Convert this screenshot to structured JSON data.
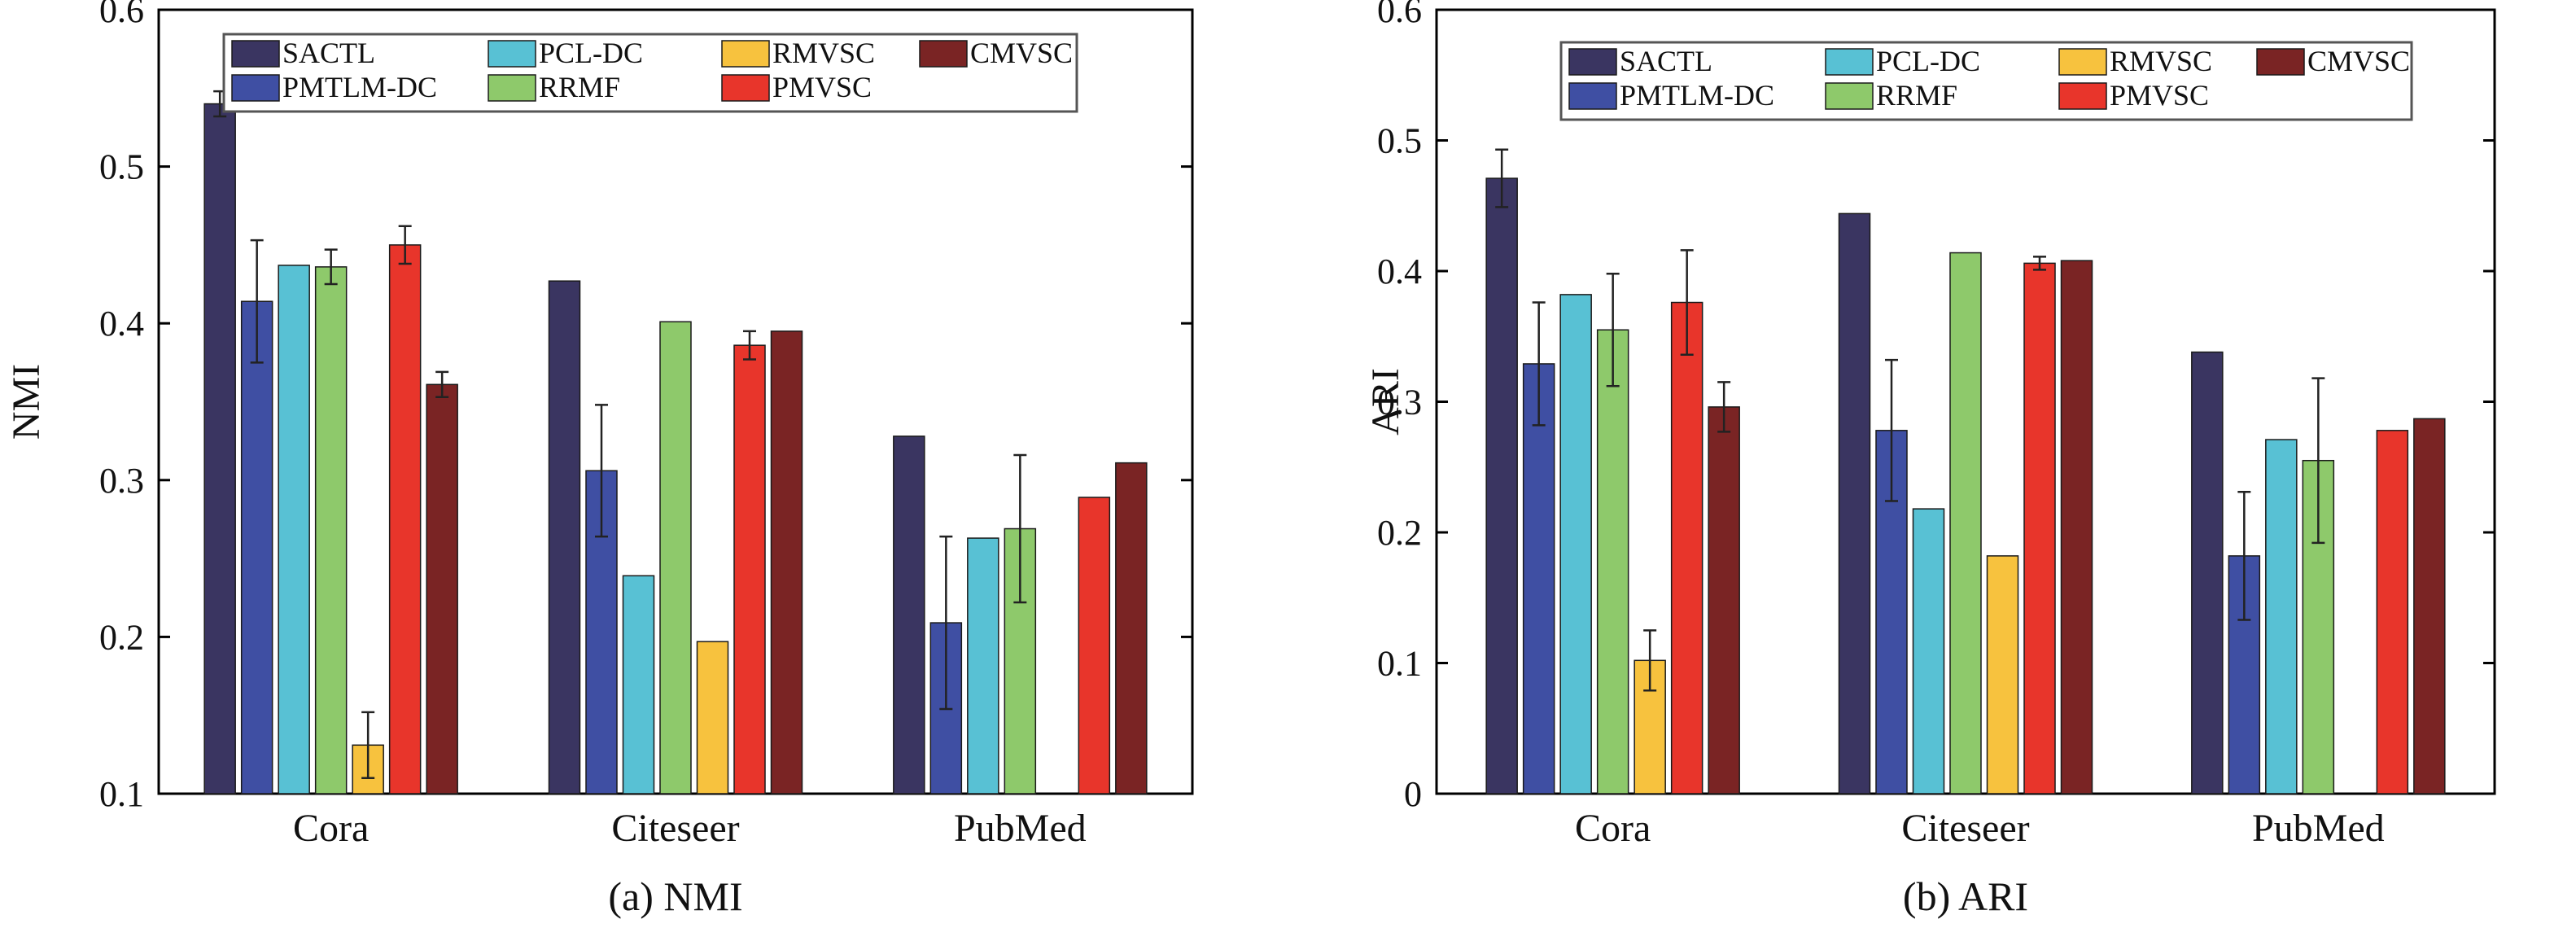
{
  "colors": {
    "SACTL": "#3a3561",
    "PMTLM-DC": "#3f4fa3",
    "PCL-DC": "#58c1d4",
    "RRMF": "#8ec96b",
    "RMVSC": "#f7c23e",
    "PMVSC": "#e8352b",
    "CMVSC": "#7a2424"
  },
  "chart_data": [
    {
      "type": "bar",
      "caption": "(a) NMI",
      "ylabel": "NMI",
      "xlabel": "",
      "ylim": [
        0.1,
        0.6
      ],
      "yticks": [
        0.1,
        0.2,
        0.3,
        0.4,
        0.5,
        0.6
      ],
      "ytick_labels": [
        "0.1",
        "0.2",
        "0.3",
        "0.4",
        "0.5",
        "0.6"
      ],
      "categories": [
        "Cora",
        "Citeseer",
        "PubMed"
      ],
      "legend_position": "top",
      "series": [
        {
          "name": "SACTL",
          "values": [
            0.54,
            0.427,
            0.328
          ],
          "errors": [
            0.008,
            null,
            null
          ]
        },
        {
          "name": "PMTLM-DC",
          "values": [
            0.414,
            0.306,
            0.209
          ],
          "errors": [
            0.039,
            0.042,
            0.055
          ]
        },
        {
          "name": "PCL-DC",
          "values": [
            0.437,
            0.239,
            0.263
          ],
          "errors": [
            null,
            null,
            null
          ]
        },
        {
          "name": "RRMF",
          "values": [
            0.436,
            0.401,
            0.269
          ],
          "errors": [
            0.011,
            null,
            0.047
          ]
        },
        {
          "name": "RMVSC",
          "values": [
            0.131,
            0.197,
            null
          ],
          "errors": [
            0.021,
            null,
            null
          ]
        },
        {
          "name": "PMVSC",
          "values": [
            0.45,
            0.386,
            0.289
          ],
          "errors": [
            0.012,
            0.009,
            null
          ]
        },
        {
          "name": "CMVSC",
          "values": [
            0.361,
            0.395,
            0.311
          ],
          "errors": [
            0.008,
            null,
            null
          ]
        }
      ]
    },
    {
      "type": "bar",
      "caption": "(b) ARI",
      "ylabel": "ARI",
      "xlabel": "",
      "ylim": [
        0,
        0.6
      ],
      "yticks": [
        0,
        0.1,
        0.2,
        0.3,
        0.4,
        0.5,
        0.6
      ],
      "ytick_labels": [
        "0",
        "0.1",
        "0.2",
        "0.3",
        "0.4",
        "0.5",
        "0.6"
      ],
      "categories": [
        "Cora",
        "Citeseer",
        "PubMed"
      ],
      "legend_position": "top",
      "series": [
        {
          "name": "SACTL",
          "values": [
            0.471,
            0.444,
            0.338
          ],
          "errors": [
            0.022,
            null,
            null
          ]
        },
        {
          "name": "PMTLM-DC",
          "values": [
            0.329,
            0.278,
            0.182
          ],
          "errors": [
            0.047,
            0.054,
            0.049
          ]
        },
        {
          "name": "PCL-DC",
          "values": [
            0.382,
            0.218,
            0.271
          ],
          "errors": [
            null,
            null,
            null
          ]
        },
        {
          "name": "RRMF",
          "values": [
            0.355,
            0.414,
            0.255
          ],
          "errors": [
            0.043,
            null,
            0.063
          ]
        },
        {
          "name": "RMVSC",
          "values": [
            0.102,
            0.182,
            null
          ],
          "errors": [
            0.023,
            null,
            null
          ]
        },
        {
          "name": "PMVSC",
          "values": [
            0.376,
            0.406,
            0.278
          ],
          "errors": [
            0.04,
            0.005,
            null
          ]
        },
        {
          "name": "CMVSC",
          "values": [
            0.296,
            0.408,
            0.287
          ],
          "errors": [
            0.019,
            null,
            null
          ]
        }
      ]
    }
  ],
  "legend_layout": [
    [
      "SACTL",
      "PCL-DC",
      "RMVSC",
      "CMVSC"
    ],
    [
      "PMTLM-DC",
      "RRMF",
      "PMVSC"
    ]
  ]
}
